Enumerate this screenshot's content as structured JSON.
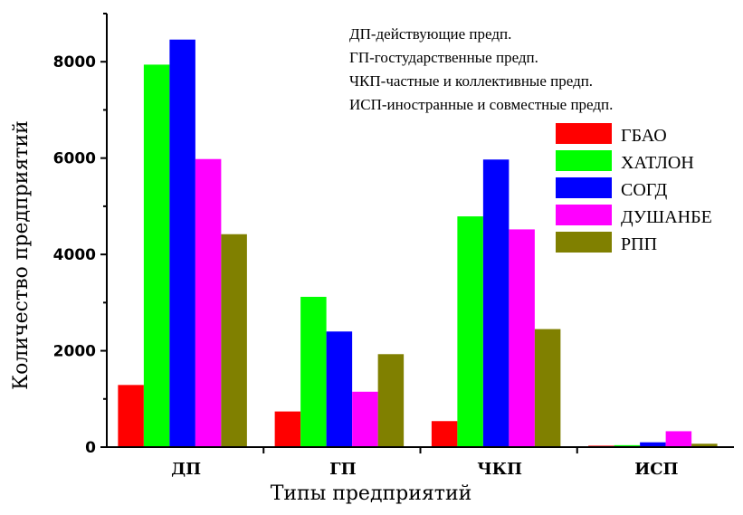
{
  "chart_data": {
    "type": "bar",
    "xlabel": "Типы предприятий",
    "ylabel": "Количество предприятий",
    "ylim": [
      0,
      9000
    ],
    "yticks": [
      0,
      2000,
      4000,
      6000,
      8000
    ],
    "categories": [
      "ДП",
      "ГП",
      "ЧКП",
      "ИСП"
    ],
    "series": [
      {
        "name": "ГБАО",
        "color": "#ff0000",
        "values": [
          1290,
          740,
          540,
          30
        ]
      },
      {
        "name": "ХАТЛОН",
        "color": "#00ff00",
        "values": [
          7940,
          3120,
          4790,
          40
        ]
      },
      {
        "name": "СОГД",
        "color": "#0000ff",
        "values": [
          8460,
          2400,
          5970,
          100
        ]
      },
      {
        "name": "ДУШАНБЕ",
        "color": "#ff00ff",
        "values": [
          5980,
          1150,
          4520,
          330
        ]
      },
      {
        "name": "РПП",
        "color": "#808000",
        "values": [
          4420,
          1930,
          2450,
          70
        ]
      }
    ],
    "legend_position": "top-right",
    "grid": false,
    "annotations": [
      "ДП-действующие предп.",
      "ГП-гостударственные предп.",
      "ЧКП-частные и коллективные предп.",
      "ИСП-иностранные и совместные предп."
    ]
  }
}
